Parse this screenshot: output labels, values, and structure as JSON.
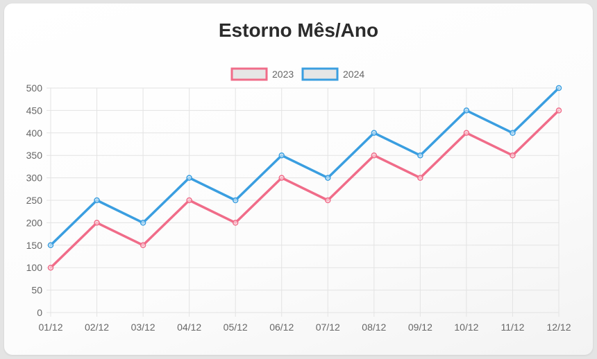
{
  "chart_data": {
    "type": "line",
    "title": "Estorno Mês/Ano",
    "categories": [
      "01/12",
      "02/12",
      "03/12",
      "04/12",
      "05/12",
      "06/12",
      "07/12",
      "08/12",
      "09/12",
      "10/12",
      "11/12",
      "12/12"
    ],
    "series": [
      {
        "name": "2023",
        "color": "#f06c89",
        "values": [
          100,
          200,
          150,
          250,
          200,
          300,
          250,
          350,
          300,
          400,
          350,
          450
        ]
      },
      {
        "name": "2024",
        "color": "#3a9ee0",
        "values": [
          150,
          250,
          200,
          300,
          250,
          350,
          300,
          400,
          350,
          450,
          400,
          500
        ]
      }
    ],
    "ylim": [
      0,
      500
    ],
    "yticks": [
      0,
      50,
      100,
      150,
      200,
      250,
      300,
      350,
      400,
      450,
      500
    ],
    "grid": true,
    "legend": "top-center",
    "xlabel": "",
    "ylabel": ""
  }
}
